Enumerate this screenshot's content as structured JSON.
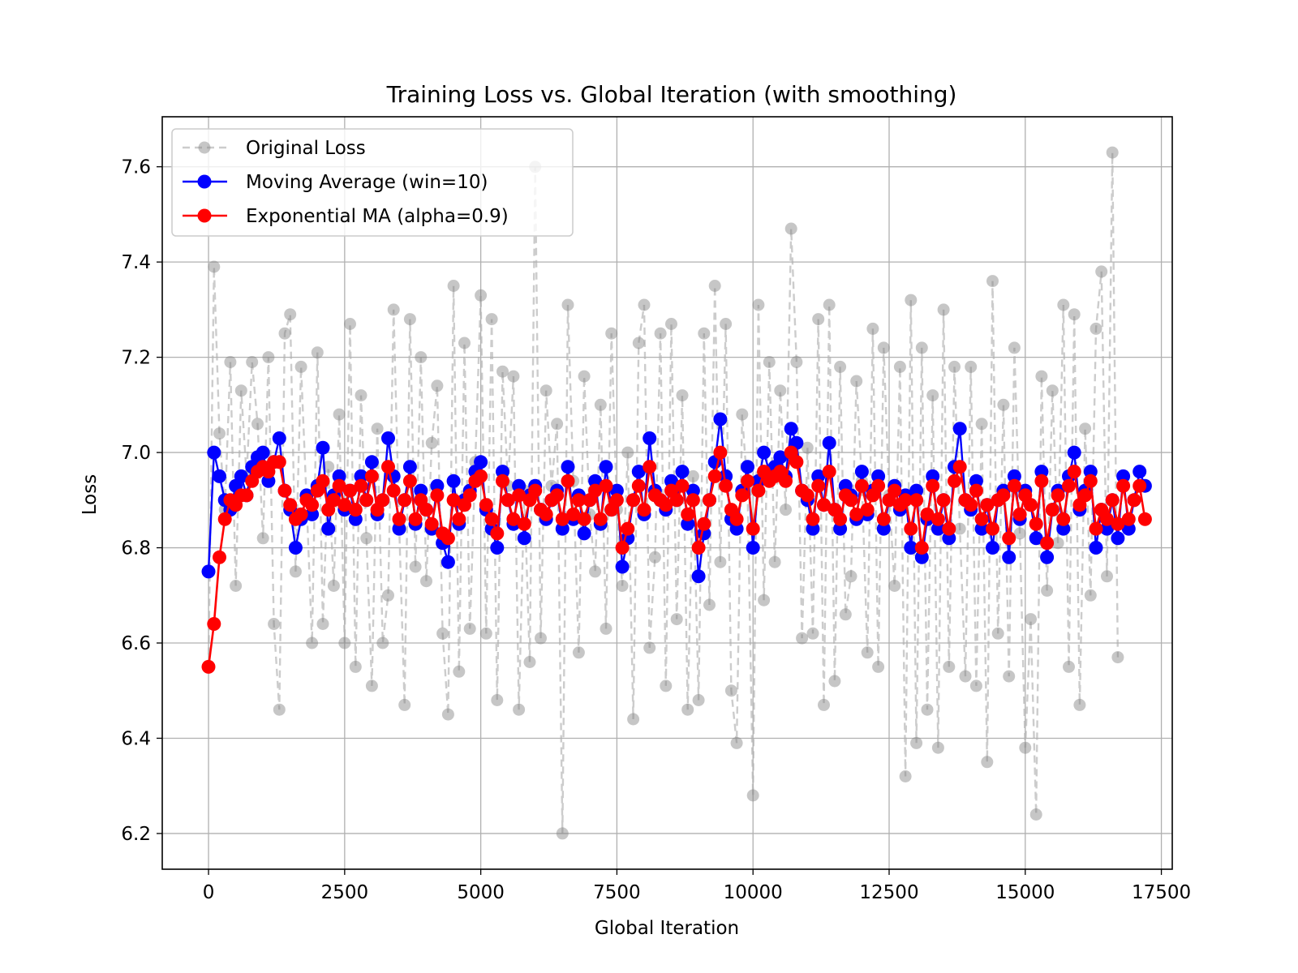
{
  "chart_data": {
    "type": "line",
    "title": "Training Loss vs. Global Iteration (with smoothing)",
    "xlabel": "Global Iteration",
    "ylabel": "Loss",
    "xlim": [
      -850,
      17700
    ],
    "ylim": [
      6.125,
      7.705
    ],
    "xticks": [
      0,
      2500,
      5000,
      7500,
      10000,
      12500,
      15000,
      17500
    ],
    "yticks": [
      6.2,
      6.4,
      6.6,
      6.8,
      7.0,
      7.2,
      7.4,
      7.6
    ],
    "grid": true,
    "legend_position": "top-left",
    "series": [
      {
        "name": "Original Loss",
        "color": "#808080",
        "style": "dashed line with circle markers, translucent",
        "x_start": 0,
        "x_step": 100,
        "values": [
          6.55,
          7.39,
          7.04,
          6.88,
          7.19,
          6.72,
          7.13,
          6.95,
          7.19,
          7.06,
          6.82,
          7.2,
          6.64,
          6.46,
          7.25,
          7.29,
          6.75,
          7.18,
          6.9,
          6.6,
          7.21,
          6.64,
          6.97,
          6.72,
          7.08,
          6.6,
          7.27,
          6.55,
          7.12,
          6.82,
          6.51,
          7.05,
          6.6,
          6.7,
          7.3,
          6.85,
          6.47,
          7.28,
          6.76,
          7.2,
          6.73,
          7.02,
          7.14,
          6.62,
          6.45,
          7.35,
          6.54,
          7.23,
          6.63,
          6.98,
          7.33,
          6.62,
          7.28,
          6.48,
          7.17,
          6.93,
          7.16,
          6.46,
          6.92,
          6.56,
          7.6,
          6.61,
          7.13,
          6.93,
          7.06,
          6.2,
          7.31,
          6.94,
          6.58,
          7.16,
          6.87,
          6.75,
          7.1,
          6.63,
          7.25,
          6.88,
          6.72,
          7.0,
          6.44,
          7.23,
          7.31,
          6.59,
          6.78,
          7.25,
          6.51,
          7.27,
          6.65,
          7.12,
          6.46,
          6.95,
          6.48,
          7.25,
          6.68,
          7.35,
          6.77,
          7.27,
          6.5,
          6.39,
          7.08,
          6.92,
          6.28,
          7.31,
          6.69,
          7.19,
          6.77,
          7.13,
          6.88,
          7.47,
          7.19,
          6.61,
          7.01,
          6.62,
          7.28,
          6.47,
          7.31,
          6.52,
          7.18,
          6.66,
          6.74,
          7.15,
          6.94,
          6.58,
          7.26,
          6.55,
          7.22,
          6.91,
          6.72,
          7.18,
          6.32,
          7.32,
          6.39,
          7.22,
          6.46,
          7.12,
          6.38,
          7.3,
          6.55,
          7.18,
          6.84,
          6.53,
          7.18,
          6.51,
          7.06,
          6.35,
          7.36,
          6.62,
          7.1,
          6.53,
          7.22,
          6.83,
          6.38,
          6.65,
          6.24,
          7.16,
          6.71,
          7.13,
          6.81,
          7.31,
          6.55,
          7.29,
          6.47,
          7.05,
          6.7,
          7.26,
          7.38,
          6.74,
          7.63,
          6.57
        ]
      },
      {
        "name": "Moving Average (win=10)",
        "color": "#0000ff",
        "style": "solid line with circle markers",
        "x_start": 0,
        "x_step": 100,
        "values": [
          6.75,
          7.0,
          6.95,
          6.9,
          6.88,
          6.93,
          6.95,
          6.91,
          6.97,
          6.99,
          7.0,
          6.94,
          6.98,
          7.03,
          6.92,
          6.88,
          6.8,
          6.86,
          6.91,
          6.87,
          6.93,
          7.01,
          6.84,
          6.91,
          6.95,
          6.88,
          6.92,
          6.86,
          6.95,
          6.9,
          6.98,
          6.87,
          6.9,
          7.03,
          6.95,
          6.84,
          6.9,
          6.97,
          6.85,
          6.92,
          6.88,
          6.84,
          6.93,
          6.81,
          6.77,
          6.94,
          6.85,
          6.9,
          6.92,
          6.96,
          6.98,
          6.88,
          6.84,
          6.8,
          6.96,
          6.9,
          6.85,
          6.93,
          6.82,
          6.91,
          6.93,
          6.88,
          6.86,
          6.9,
          6.92,
          6.84,
          6.97,
          6.86,
          6.91,
          6.83,
          6.9,
          6.94,
          6.85,
          6.97,
          6.88,
          6.92,
          6.76,
          6.82,
          6.9,
          6.96,
          6.87,
          7.03,
          6.92,
          6.9,
          6.88,
          6.94,
          6.9,
          6.96,
          6.85,
          6.92,
          6.74,
          6.83,
          6.9,
          6.98,
          7.07,
          6.95,
          6.86,
          6.84,
          6.92,
          6.97,
          6.8,
          6.94,
          7.0,
          6.96,
          6.97,
          6.99,
          6.95,
          7.05,
          7.02,
          6.92,
          6.9,
          6.84,
          6.95,
          6.89,
          7.02,
          6.88,
          6.84,
          6.93,
          6.91,
          6.86,
          6.96,
          6.87,
          6.92,
          6.95,
          6.84,
          6.9,
          6.93,
          6.88,
          6.91,
          6.8,
          6.92,
          6.78,
          6.86,
          6.95,
          6.84,
          6.9,
          6.82,
          6.97,
          7.05,
          6.9,
          6.88,
          6.94,
          6.84,
          6.89,
          6.8,
          6.9,
          6.92,
          6.78,
          6.95,
          6.86,
          6.92,
          6.89,
          6.82,
          6.96,
          6.78,
          6.88,
          6.92,
          6.84,
          6.95,
          7.0,
          6.88,
          6.92,
          6.96,
          6.8,
          6.88,
          6.84,
          6.9,
          6.82,
          6.95,
          6.84,
          6.9,
          6.96,
          6.93
        ]
      },
      {
        "name": "Exponential MA (alpha=0.9)",
        "color": "#ff0000",
        "style": "solid line with circle markers",
        "x_start": 0,
        "x_step": 100,
        "values": [
          6.55,
          6.64,
          6.78,
          6.86,
          6.9,
          6.89,
          6.91,
          6.91,
          6.94,
          6.96,
          6.97,
          6.96,
          6.98,
          6.98,
          6.92,
          6.89,
          6.86,
          6.87,
          6.9,
          6.89,
          6.92,
          6.94,
          6.88,
          6.9,
          6.93,
          6.89,
          6.92,
          6.88,
          6.93,
          6.9,
          6.95,
          6.88,
          6.9,
          6.97,
          6.92,
          6.86,
          6.9,
          6.94,
          6.86,
          6.9,
          6.88,
          6.85,
          6.91,
          6.83,
          6.82,
          6.9,
          6.86,
          6.89,
          6.91,
          6.94,
          6.95,
          6.89,
          6.86,
          6.83,
          6.94,
          6.9,
          6.86,
          6.91,
          6.85,
          6.9,
          6.92,
          6.88,
          6.87,
          6.9,
          6.91,
          6.86,
          6.94,
          6.87,
          6.9,
          6.86,
          6.9,
          6.92,
          6.86,
          6.93,
          6.88,
          6.9,
          6.8,
          6.84,
          6.9,
          6.93,
          6.88,
          6.97,
          6.91,
          6.9,
          6.89,
          6.92,
          6.9,
          6.93,
          6.87,
          6.9,
          6.8,
          6.85,
          6.9,
          6.95,
          7.0,
          6.93,
          6.88,
          6.86,
          6.91,
          6.94,
          6.84,
          6.92,
          6.96,
          6.94,
          6.95,
          6.96,
          6.94,
          7.0,
          6.98,
          6.92,
          6.91,
          6.86,
          6.93,
          6.89,
          6.96,
          6.88,
          6.86,
          6.91,
          6.9,
          6.87,
          6.93,
          6.88,
          6.91,
          6.93,
          6.86,
          6.9,
          6.92,
          6.89,
          6.9,
          6.84,
          6.9,
          6.8,
          6.87,
          6.93,
          6.86,
          6.9,
          6.84,
          6.94,
          6.97,
          6.9,
          6.89,
          6.92,
          6.86,
          6.89,
          6.84,
          6.9,
          6.91,
          6.82,
          6.93,
          6.87,
          6.91,
          6.89,
          6.85,
          6.94,
          6.81,
          6.88,
          6.91,
          6.86,
          6.93,
          6.96,
          6.89,
          6.91,
          6.94,
          6.84,
          6.88,
          6.86,
          6.9,
          6.85,
          6.93,
          6.86,
          6.9,
          6.93,
          6.86
        ]
      }
    ]
  }
}
